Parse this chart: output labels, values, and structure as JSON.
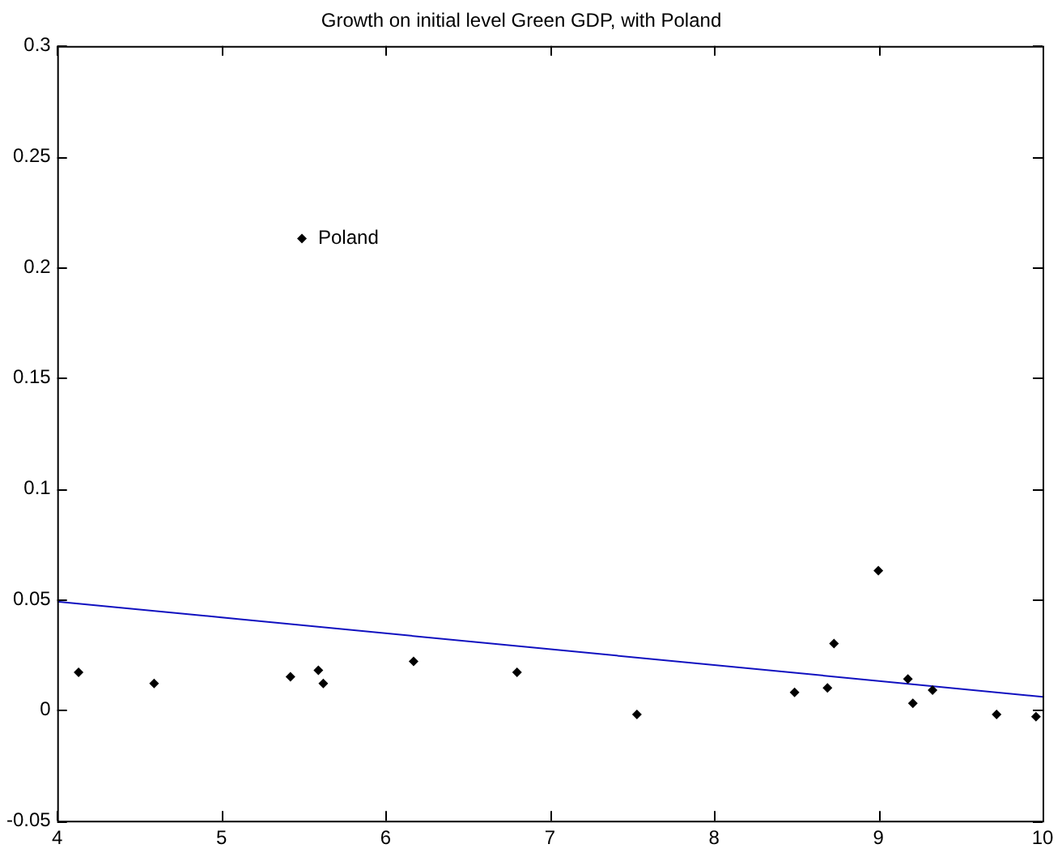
{
  "chart_data": {
    "type": "scatter",
    "title": "Growth on initial level Green GDP, with Poland",
    "xlim": [
      4,
      10
    ],
    "xticks": [
      4,
      5,
      6,
      7,
      8,
      9,
      10
    ],
    "ylim": [
      -0.05,
      0.3
    ],
    "yticks": [
      -0.05,
      0,
      0.05,
      0.1,
      0.15,
      0.2,
      0.25,
      0.3
    ],
    "grid": false,
    "legend": false,
    "marker": "diamond",
    "series": [
      {
        "color": "#000000",
        "x": [
          4.13,
          4.59,
          5.42,
          5.59,
          5.62,
          6.17,
          6.8,
          7.53,
          8.49,
          8.69,
          8.73,
          9.0,
          9.18,
          9.21,
          9.33,
          9.72,
          9.96,
          5.49
        ],
        "values": [
          0.017,
          0.012,
          0.015,
          0.018,
          0.012,
          0.022,
          0.017,
          -0.002,
          0.008,
          0.01,
          0.03,
          0.063,
          0.014,
          0.003,
          0.009,
          -0.002,
          -0.003,
          0.213
        ]
      },
      {
        "type": "line",
        "color": "#1010c0",
        "x": [
          4,
          10
        ],
        "values": [
          0.049,
          0.006
        ],
        "marker": "none"
      }
    ],
    "annotations": [
      {
        "text": "Poland",
        "x": 5.49,
        "y": 0.213
      }
    ]
  }
}
